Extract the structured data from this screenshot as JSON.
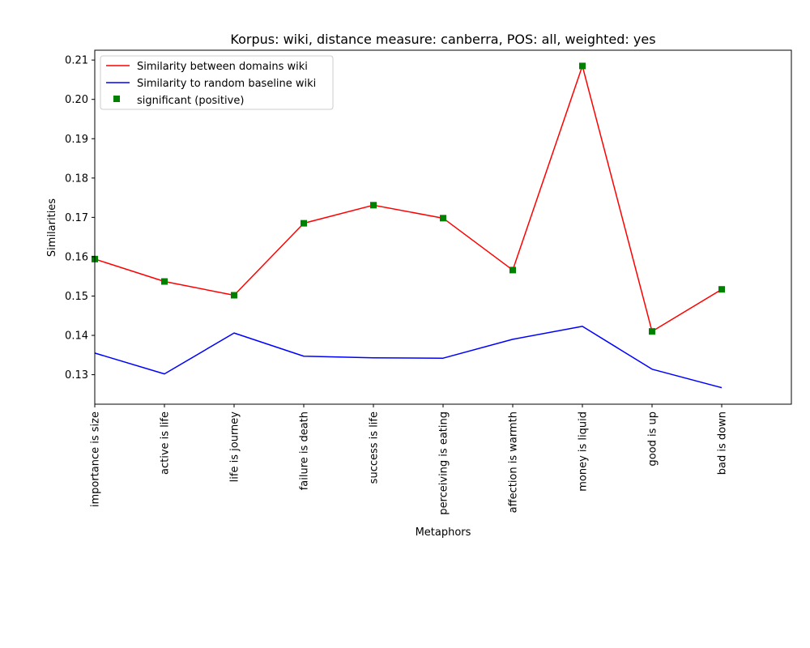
{
  "chart_data": {
    "type": "line",
    "title": "Korpus: wiki, distance measure: canberra, POS: all, weighted: yes",
    "xlabel": "Metaphors",
    "ylabel": "Similarities",
    "categories": [
      "importance is size",
      "active is life",
      "life is journey",
      "failure is death",
      "success is life",
      "perceiving is eating",
      "affection is warmth",
      "money is liquid",
      "good is up",
      "bad is down"
    ],
    "x_range": [
      0,
      10
    ],
    "ylim": [
      0.1225,
      0.2125
    ],
    "yticks": [
      0.13,
      0.14,
      0.15,
      0.16,
      0.17,
      0.18,
      0.19,
      0.2,
      0.21
    ],
    "ytick_labels": [
      "0.13",
      "0.14",
      "0.15",
      "0.16",
      "0.17",
      "0.18",
      "0.19",
      "0.20",
      "0.21"
    ],
    "grid": false,
    "legend_position": "top-left",
    "series": [
      {
        "name": "Similarity between domains wiki",
        "color": "#ff0000",
        "style": "line",
        "values": [
          0.1594,
          0.1537,
          0.1502,
          0.1685,
          0.1731,
          0.1698,
          0.1566,
          0.2085,
          0.141,
          0.1517
        ]
      },
      {
        "name": "Similarity to random baseline wiki",
        "color": "#0000ff",
        "style": "line",
        "values": [
          0.1355,
          0.1302,
          0.1406,
          0.1347,
          0.1343,
          0.1342,
          0.139,
          0.1423,
          0.1314,
          0.1267
        ]
      },
      {
        "name": "significant (positive)",
        "color": "#008000",
        "style": "marker-square",
        "values": [
          0.1594,
          0.1537,
          0.1502,
          0.1685,
          0.1731,
          0.1698,
          0.1566,
          0.2085,
          0.141,
          0.1517
        ]
      }
    ]
  }
}
